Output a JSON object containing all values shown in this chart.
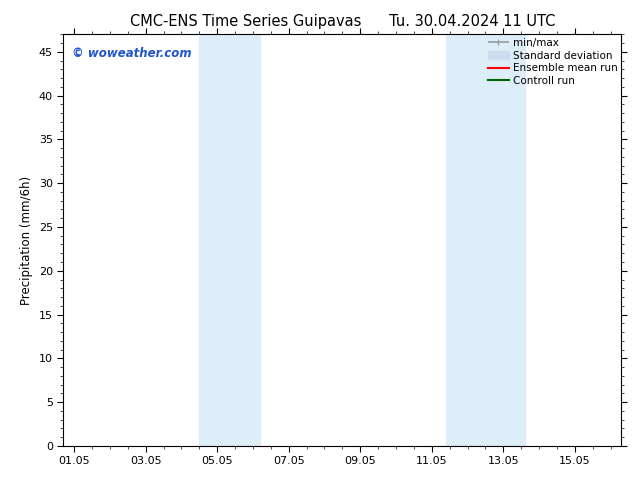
{
  "title": "CMC-ENS Time Series Guipavas      Tu. 30.04.2024 11 UTC",
  "ylabel": "Precipitation (mm/6h)",
  "xlabel": "",
  "ylim": [
    0,
    47
  ],
  "yticks": [
    0,
    5,
    10,
    15,
    20,
    25,
    30,
    35,
    40,
    45
  ],
  "xtick_labels": [
    "01.05",
    "03.05",
    "05.05",
    "07.05",
    "09.05",
    "11.05",
    "13.05",
    "15.05"
  ],
  "xtick_positions": [
    0,
    2,
    4,
    6,
    8,
    10,
    12,
    14
  ],
  "xlim": [
    -0.3,
    15.3
  ],
  "background_color": "#ffffff",
  "plot_bg_color": "#ffffff",
  "shaded_bands": [
    {
      "x_start": 3.5,
      "x_end": 5.2,
      "color": "#ddeef8"
    },
    {
      "x_start": 10.4,
      "x_end": 12.6,
      "color": "#ddeef8"
    }
  ],
  "legend_entries": [
    {
      "label": "min/max",
      "color": "#999999",
      "lw": 1.2
    },
    {
      "label": "Standard deviation",
      "color": "#ccddf0",
      "lw": 8
    },
    {
      "label": "Ensemble mean run",
      "color": "#ff0000",
      "lw": 1.5
    },
    {
      "label": "Controll run",
      "color": "#006600",
      "lw": 1.5
    }
  ],
  "watermark": "© woweather.com",
  "watermark_color": "#2255cc",
  "title_fontsize": 10.5,
  "axis_fontsize": 8.5,
  "tick_fontsize": 8,
  "watermark_fontsize": 8.5,
  "legend_fontsize": 7.5
}
